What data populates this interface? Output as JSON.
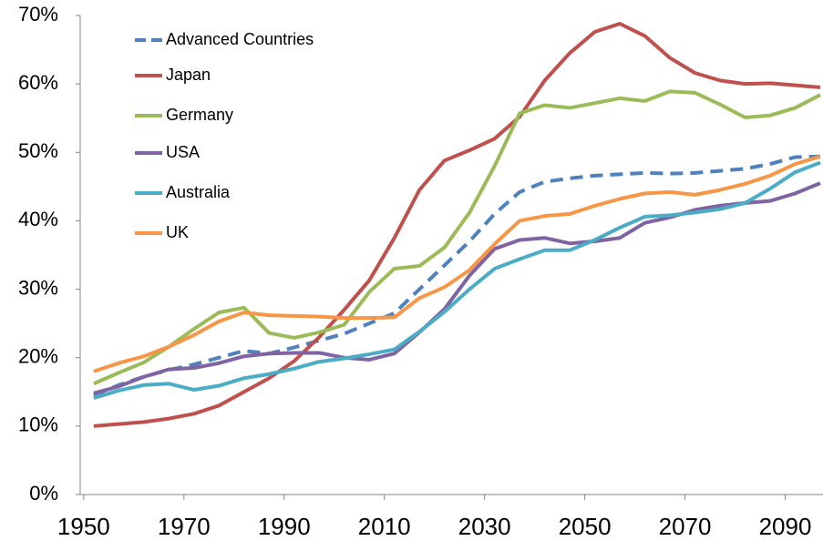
{
  "chart_data": {
    "type": "line",
    "x": [
      1952,
      1957,
      1962,
      1967,
      1972,
      1977,
      1982,
      1987,
      1992,
      1997,
      2002,
      2007,
      2012,
      2017,
      2022,
      2027,
      2032,
      2037,
      2042,
      2047,
      2052,
      2057,
      2062,
      2067,
      2072,
      2077,
      2082,
      2087,
      2092,
      2097
    ],
    "series": [
      {
        "name": "Advanced Countries",
        "color": "#4f81bd",
        "dashed": true,
        "values": [
          14.5,
          16.0,
          17.2,
          18.2,
          19.0,
          20.0,
          21.0,
          20.6,
          21.5,
          22.5,
          23.5,
          25.0,
          26.5,
          30.0,
          33.5,
          37.0,
          41.0,
          44.2,
          45.7,
          46.2,
          46.6,
          46.8,
          47.0,
          46.9,
          47.0,
          47.3,
          47.6,
          48.3,
          49.3,
          49.4
        ]
      },
      {
        "name": "Japan",
        "color": "#c0504d",
        "values": [
          10.0,
          10.3,
          10.6,
          11.1,
          11.8,
          13.0,
          15.0,
          17.0,
          19.5,
          23.0,
          27.0,
          31.3,
          37.5,
          44.5,
          48.8,
          50.3,
          52.0,
          55.2,
          60.5,
          64.5,
          67.6,
          68.8,
          67.0,
          63.8,
          61.6,
          60.5,
          60.0,
          60.1,
          59.8,
          59.5
        ]
      },
      {
        "name": "Germany",
        "color": "#9bbb59",
        "values": [
          16.2,
          17.8,
          19.3,
          21.6,
          24.2,
          26.6,
          27.3,
          23.6,
          22.9,
          23.7,
          24.8,
          29.6,
          33.0,
          33.4,
          36.1,
          41.2,
          48.0,
          55.7,
          56.9,
          56.5,
          57.2,
          57.9,
          57.5,
          58.9,
          58.7,
          57.0,
          55.1,
          55.4,
          56.5,
          58.4
        ]
      },
      {
        "name": "USA",
        "color": "#8064a2",
        "values": [
          14.8,
          15.8,
          17.2,
          18.3,
          18.5,
          19.2,
          20.2,
          20.6,
          20.7,
          20.7,
          20.0,
          19.7,
          20.6,
          23.7,
          27.1,
          32.0,
          35.9,
          37.2,
          37.5,
          36.7,
          37.0,
          37.5,
          39.7,
          40.5,
          41.6,
          42.2,
          42.6,
          42.9,
          44.0,
          45.5
        ]
      },
      {
        "name": "Australia",
        "color": "#4bacc6",
        "values": [
          14.1,
          15.2,
          16.0,
          16.2,
          15.3,
          15.9,
          17.0,
          17.6,
          18.4,
          19.4,
          19.9,
          20.5,
          21.2,
          23.8,
          26.7,
          30.0,
          33.0,
          34.4,
          35.7,
          35.7,
          37.2,
          39.0,
          40.6,
          40.8,
          41.2,
          41.7,
          42.6,
          44.7,
          47.1,
          48.5
        ]
      },
      {
        "name": "UK",
        "color": "#f79646",
        "values": [
          18.0,
          19.2,
          20.2,
          21.6,
          23.3,
          25.3,
          26.6,
          26.2,
          26.1,
          26.0,
          25.8,
          25.8,
          25.9,
          28.7,
          30.3,
          32.8,
          36.6,
          40.0,
          40.7,
          41.0,
          42.2,
          43.2,
          44.0,
          44.2,
          43.8,
          44.5,
          45.4,
          46.6,
          48.3,
          49.4
        ]
      }
    ],
    "xlim": [
      1949.3,
      2097
    ],
    "xticks": [
      1950,
      1970,
      1990,
      2010,
      2030,
      2050,
      2070,
      2090
    ],
    "ylim": [
      0,
      70
    ],
    "yticks": [
      {
        "value": 0,
        "label": "0%"
      },
      {
        "value": 10,
        "label": "10%"
      },
      {
        "value": 20,
        "label": "20%"
      },
      {
        "value": 30,
        "label": "30%"
      },
      {
        "value": 40,
        "label": "40%"
      },
      {
        "value": 50,
        "label": "50%"
      },
      {
        "value": 60,
        "label": "60%"
      },
      {
        "value": 70,
        "label": "70%"
      }
    ],
    "grid": false,
    "legend": "top-left"
  }
}
